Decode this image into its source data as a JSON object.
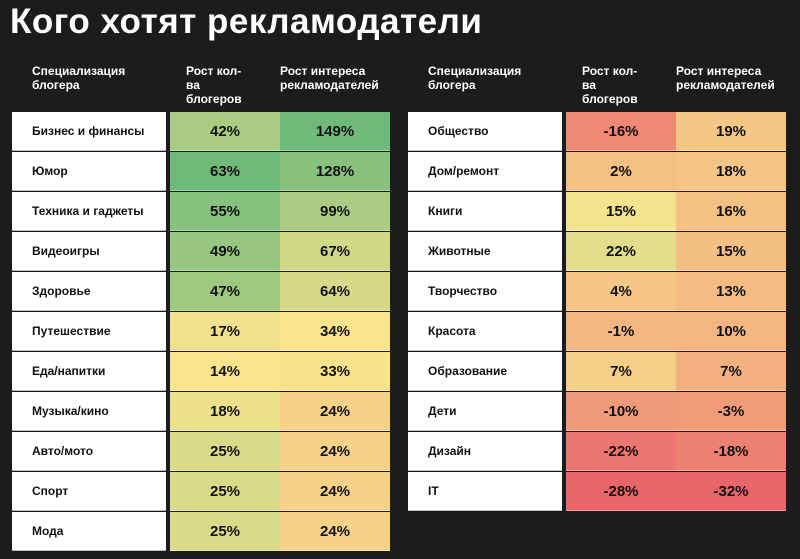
{
  "title": "Кого хотят рекламодатели",
  "headers": {
    "specialization": "Специализация\nблогера",
    "blogger_growth": "Рост кол-ва\nблогеров",
    "advertiser_growth": "Рост интереса\nрекламодателей"
  },
  "chart_data": {
    "type": "table",
    "columns": [
      "Специализация блогера",
      "Рост кол-ва блогеров",
      "Рост интереса рекламодателей"
    ],
    "color_scale": {
      "low": "#e8656a",
      "mid": "#f9e48d",
      "high": "#6fba7a"
    },
    "left": [
      {
        "name": "Бизнес и финансы",
        "bloggers": "42%",
        "advertisers": "149%",
        "b": 42,
        "a": 149
      },
      {
        "name": "Юмор",
        "bloggers": "63%",
        "advertisers": "128%",
        "b": 63,
        "a": 128
      },
      {
        "name": "Техника и гаджеты",
        "bloggers": "55%",
        "advertisers": "99%",
        "b": 55,
        "a": 99
      },
      {
        "name": "Видеоигры",
        "bloggers": "49%",
        "advertisers": "67%",
        "b": 49,
        "a": 67
      },
      {
        "name": "Здоровье",
        "bloggers": "47%",
        "advertisers": "64%",
        "b": 47,
        "a": 64
      },
      {
        "name": "Путешествие",
        "bloggers": "17%",
        "advertisers": "34%",
        "b": 17,
        "a": 34
      },
      {
        "name": "Еда/напитки",
        "bloggers": "14%",
        "advertisers": "33%",
        "b": 14,
        "a": 33
      },
      {
        "name": "Музыка/кино",
        "bloggers": "18%",
        "advertisers": "24%",
        "b": 18,
        "a": 24
      },
      {
        "name": "Авто/мото",
        "bloggers": "25%",
        "advertisers": "24%",
        "b": 25,
        "a": 24
      },
      {
        "name": "Спорт",
        "bloggers": "25%",
        "advertisers": "24%",
        "b": 25,
        "a": 24
      },
      {
        "name": "Мода",
        "bloggers": "25%",
        "advertisers": "24%",
        "b": 25,
        "a": 24
      }
    ],
    "right": [
      {
        "name": "Общество",
        "bloggers": "-16%",
        "advertisers": "19%",
        "b": -16,
        "a": 19
      },
      {
        "name": "Дом/ремонт",
        "bloggers": "2%",
        "advertisers": "18%",
        "b": 2,
        "a": 18
      },
      {
        "name": "Книги",
        "bloggers": "15%",
        "advertisers": "16%",
        "b": 15,
        "a": 16
      },
      {
        "name": "Животные",
        "bloggers": "22%",
        "advertisers": "15%",
        "b": 22,
        "a": 15
      },
      {
        "name": "Творчество",
        "bloggers": "4%",
        "advertisers": "13%",
        "b": 4,
        "a": 13
      },
      {
        "name": "Красота",
        "bloggers": "-1%",
        "advertisers": "10%",
        "b": -1,
        "a": 10
      },
      {
        "name": "Образование",
        "bloggers": "7%",
        "advertisers": "7%",
        "b": 7,
        "a": 7
      },
      {
        "name": "Дети",
        "bloggers": "-10%",
        "advertisers": "-3%",
        "b": -10,
        "a": -3
      },
      {
        "name": "Дизайн",
        "bloggers": "-22%",
        "advertisers": "-18%",
        "b": -22,
        "a": -18
      },
      {
        "name": "IT",
        "bloggers": "-28%",
        "advertisers": "-32%",
        "b": -28,
        "a": -32
      }
    ]
  }
}
